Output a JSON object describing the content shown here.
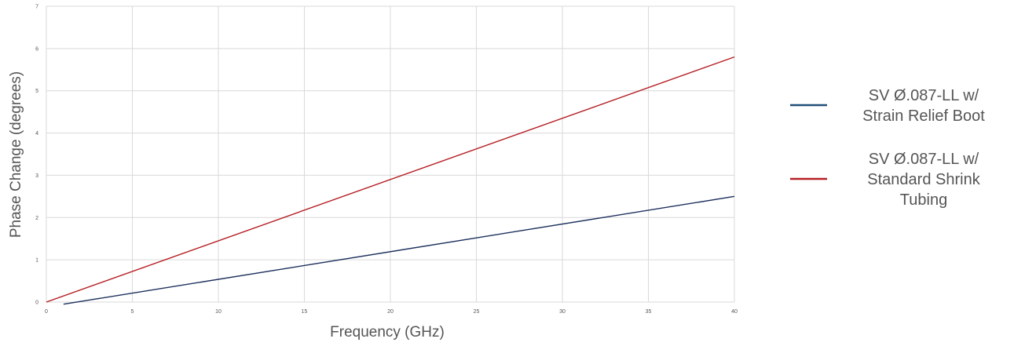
{
  "chart_data": {
    "type": "line",
    "title": "",
    "xlabel": "Frequency (GHz)",
    "ylabel": "Phase Change (degrees)",
    "xlim": [
      0,
      40
    ],
    "ylim": [
      0,
      7
    ],
    "x_ticks": [
      0,
      5,
      10,
      15,
      20,
      25,
      30,
      35,
      40
    ],
    "y_ticks": [
      0,
      1,
      2,
      3,
      4,
      5,
      6,
      7
    ],
    "grid": true,
    "legend_position": "right",
    "series": [
      {
        "name": "SV Ø.087-LL w/ Strain Relief Boot",
        "legend_lines": [
          "SV Ø.087-LL w/",
          "Strain Relief Boot"
        ],
        "color": "#1c2f5c",
        "legend_color": "#1f4e79",
        "x": [
          1,
          40
        ],
        "y": [
          -0.05,
          2.5
        ]
      },
      {
        "name": "SV Ø.087-LL w/ Standard Shrink Tubing",
        "legend_lines": [
          "SV Ø.087-LL w/",
          "Standard Shrink",
          "Tubing"
        ],
        "color": "#b51f24",
        "legend_color": "#b51f24",
        "x": [
          0,
          40
        ],
        "y": [
          0,
          5.8
        ]
      }
    ]
  }
}
